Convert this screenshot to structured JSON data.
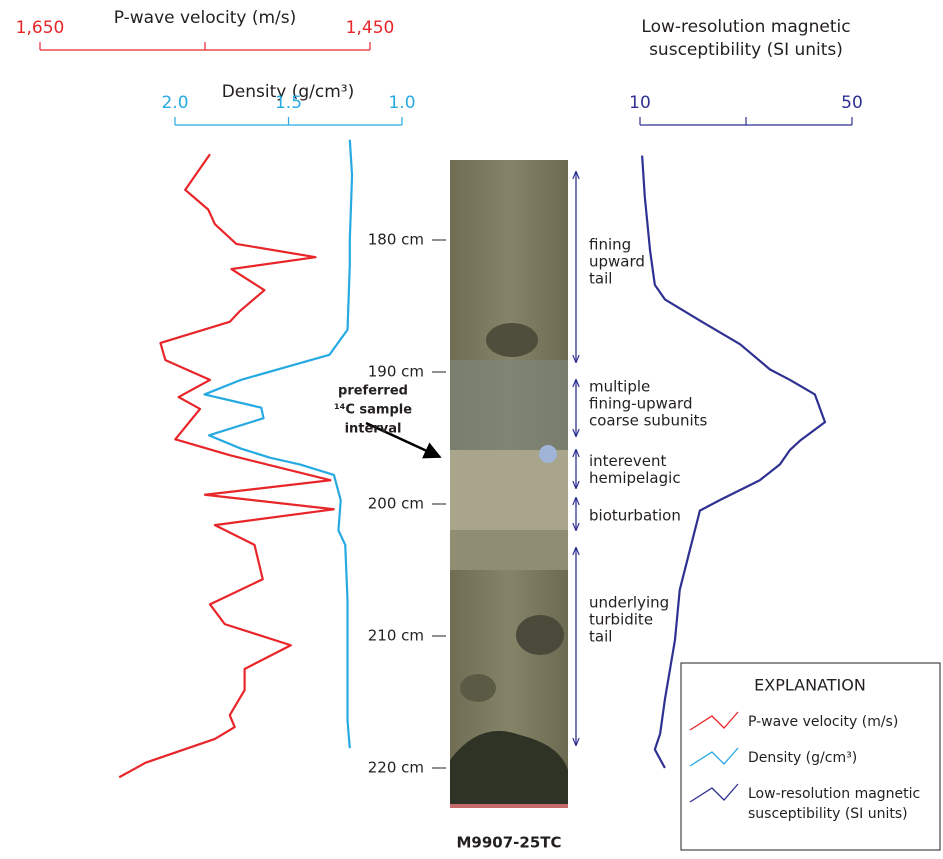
{
  "chart_data": {
    "type": "well-log",
    "ylim": [
      172,
      223
    ],
    "yticks": [
      {
        "value": 180,
        "label": "180 cm"
      },
      {
        "value": 190,
        "label": "190 cm"
      },
      {
        "value": 200,
        "label": "200 cm"
      },
      {
        "value": 210,
        "label": "210 cm"
      },
      {
        "value": 220,
        "label": "220 cm"
      }
    ],
    "series": [
      {
        "name": [
          "P-wave velocity (m/s)"
        ],
        "axis_title": [
          "P-wave velocity (m/s)"
        ],
        "color": "#e8262a",
        "xlim": [
          1650,
          1450
        ],
        "xticks": [
          {
            "value": 1650,
            "label": "1,650"
          },
          {
            "value": 1550,
            "label": null
          },
          {
            "value": 1450,
            "label": "1,450"
          }
        ],
        "depth": [
          173.5,
          176.2,
          177.7,
          178.8,
          180.3,
          181.3,
          182.2,
          183.8,
          185.4,
          186.2,
          187.8,
          189.1,
          190.6,
          191.9,
          192.8,
          195.1,
          196.3,
          198.2,
          199.3,
          200.4,
          201.6,
          203.1,
          205.7,
          207.6,
          209.1,
          210.7,
          212.5,
          214.1,
          216.0,
          216.9,
          217.8,
          219.6,
          220.7
        ],
        "values": [
          1547,
          1562,
          1548,
          1544,
          1531,
          1483,
          1534,
          1514,
          1529,
          1535,
          1577,
          1574,
          1547,
          1566,
          1553,
          1568,
          1535,
          1474,
          1550,
          1472,
          1544,
          1520,
          1515,
          1547,
          1538,
          1498,
          1526,
          1526,
          1535,
          1532,
          1544,
          1586,
          1602
        ]
      },
      {
        "name": [
          "Density (g/cm³)"
        ],
        "axis_title": [
          "Density (g/cm³)"
        ],
        "color": "#27aae1",
        "xlim": [
          2.0,
          1.0
        ],
        "xticks": [
          {
            "value": 2.0,
            "label": "2.0"
          },
          1.5,
          {
            "value": 1.0,
            "label": "1.0"
          }
        ],
        "depth": [
          172.4,
          175.1,
          180.0,
          181.9,
          186.8,
          188.7,
          190.6,
          191.7,
          192.7,
          193.5,
          194.8,
          195.8,
          196.5,
          197.0,
          197.8,
          199.7,
          202.0,
          203.1,
          207.3,
          216.4,
          218.5
        ],
        "values": [
          1.23,
          1.22,
          1.23,
          1.23,
          1.24,
          1.32,
          1.71,
          1.87,
          1.62,
          1.61,
          1.85,
          1.71,
          1.58,
          1.45,
          1.3,
          1.27,
          1.28,
          1.25,
          1.24,
          1.24,
          1.23
        ]
      },
      {
        "name": [
          "Low-resolution magnetic",
          "susceptibility (SI units)"
        ],
        "axis_title": [
          "Low-resolution magnetic",
          "susceptibility (SI units)"
        ],
        "color": "#2e3192",
        "xlim": [
          10,
          50
        ],
        "xticks": [
          10,
          {
            "value": 30,
            "label": null
          },
          50
        ],
        "depth": [
          173.6,
          176.7,
          180.8,
          183.4,
          184.5,
          186.1,
          187.9,
          189.8,
          190.6,
          191.7,
          193.8,
          195.2,
          195.9,
          197.0,
          198.2,
          199.7,
          200.5,
          203.5,
          206.5,
          210.3,
          214.8,
          217.4,
          218.6,
          220.0
        ],
        "values": [
          10.4,
          10.9,
          11.9,
          12.8,
          14.7,
          21.3,
          28.9,
          34.5,
          38.3,
          43.0,
          44.9,
          40.2,
          38.3,
          36.4,
          32.6,
          25.1,
          21.3,
          19.4,
          17.5,
          16.6,
          14.7,
          13.8,
          12.8,
          14.7
        ]
      }
    ],
    "annotations": [
      {
        "lines": [
          "fining",
          "upward",
          "tail"
        ]
      },
      {
        "lines": [
          "multiple",
          "fining-upward",
          "coarse subunits"
        ]
      },
      {
        "lines": [
          "interevent",
          "hemipelagic"
        ]
      },
      {
        "lines": [
          "bioturbation"
        ]
      },
      {
        "lines": [
          "underlying",
          "turbidite",
          "tail"
        ]
      }
    ],
    "sample_note": [
      "preferred",
      "¹⁴C sample",
      "interval"
    ],
    "core_label": "M9907-25TC",
    "legend_title": "EXPLANATION"
  }
}
